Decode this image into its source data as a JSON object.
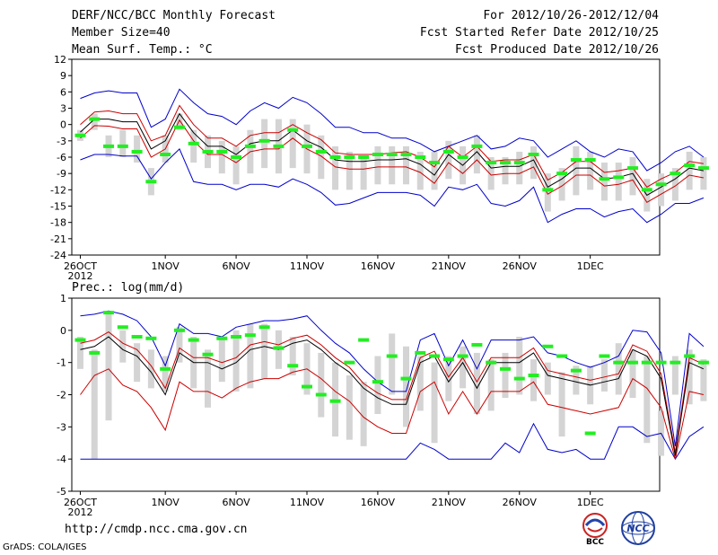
{
  "header": {
    "title": "DERF/NCC/BCC Monthly Forecast",
    "member_size": "Member Size=40",
    "variable": "Mean Surf. Temp.: °C",
    "period": "For 2012/10/26-2012/12/04",
    "started": "Fcst Started Refer Date 2012/10/25",
    "produced": "Fcst Produced Date 2012/10/26"
  },
  "footer": {
    "url": "http://cmdp.ncc.cma.gov.cn",
    "credit": "GrADS: COLA/IGES",
    "logo_left_label": "BCC",
    "logo_right_label": "NCC"
  },
  "colors": {
    "ensemble_mean": "#000000",
    "inner_band": "#cc0000",
    "outer_band": "#0000cc",
    "bar": "#d4d4d4",
    "marker": "#22ee22"
  },
  "chart_data": [
    {
      "type": "line",
      "title": "Mean Surf. Temp.: °C",
      "xlabel": "",
      "ylabel": "",
      "x_days": 40,
      "xticks": [
        {
          "day": 0,
          "label": "26OCT"
        },
        {
          "day": 6,
          "label": "1NOV"
        },
        {
          "day": 11,
          "label": "6NOV"
        },
        {
          "day": 16,
          "label": "11NOV"
        },
        {
          "day": 21,
          "label": "16NOV"
        },
        {
          "day": 26,
          "label": "21NOV"
        },
        {
          "day": 31,
          "label": "26NOV"
        },
        {
          "day": 36,
          "label": "1DEC"
        }
      ],
      "year_label": "2012",
      "ylim": [
        -24,
        12
      ],
      "yticks": [
        12,
        9,
        6,
        3,
        0,
        -3,
        -6,
        -9,
        -12,
        -15,
        -18,
        -21,
        -24
      ],
      "series": [
        {
          "name": "mean",
          "values": [
            -1.4,
            1.0,
            1.0,
            0.5,
            0.5,
            -4.5,
            -3,
            2,
            -1.5,
            -4,
            -4,
            -5.5,
            -3.5,
            -3,
            -3,
            -1,
            -3,
            -4.2,
            -6.5,
            -6.8,
            -6.8,
            -6.5,
            -6.5,
            -6.3,
            -7.3,
            -9.3,
            -5.5,
            -7.5,
            -5.0,
            -8.0,
            -7.7,
            -7.7,
            -6.5,
            -11.5,
            -10.0,
            -8.0,
            -8.0,
            -10.0,
            -9.7,
            -9.0,
            -13.0,
            -11.5,
            -10.0,
            -8.0,
            -8.5
          ]
        },
        {
          "name": "upper-red",
          "values": [
            0,
            2.3,
            2.5,
            2,
            2,
            -3,
            -2,
            3.5,
            0,
            -2.5,
            -2.5,
            -4,
            -2,
            -1.5,
            -1.5,
            0,
            -1.5,
            -2.8,
            -5.2,
            -5.5,
            -5.5,
            -5.5,
            -5.2,
            -5,
            -6,
            -7.8,
            -4,
            -6,
            -4,
            -6.8,
            -6.5,
            -6.5,
            -5.5,
            -10.2,
            -8.8,
            -6.8,
            -6.8,
            -8.8,
            -8.5,
            -8,
            -11.5,
            -10,
            -8.8,
            -6.8,
            -7.2
          ]
        },
        {
          "name": "lower-red",
          "values": [
            -2.5,
            -0.2,
            -0.3,
            -0.8,
            -0.8,
            -6,
            -4.5,
            0.8,
            -3,
            -5.5,
            -5.5,
            -7,
            -5,
            -4.5,
            -4.5,
            -2.5,
            -4.5,
            -5.8,
            -7.8,
            -8.2,
            -8.2,
            -7.8,
            -7.8,
            -7.8,
            -8.8,
            -10.8,
            -7,
            -9,
            -6.5,
            -9.3,
            -9,
            -9,
            -7.8,
            -12.8,
            -11.3,
            -9.3,
            -9.3,
            -11.3,
            -11,
            -10.2,
            -14.3,
            -12.8,
            -11.3,
            -9.3,
            -9.8
          ]
        },
        {
          "name": "upper-blue",
          "values": [
            4.8,
            5.8,
            6.2,
            5.8,
            5.8,
            -0.5,
            1,
            6.5,
            4,
            2,
            1.5,
            0,
            2.5,
            4,
            3,
            5,
            4,
            2,
            -0.5,
            -0.5,
            -1.5,
            -1.5,
            -2.5,
            -2.5,
            -3.5,
            -5,
            -4,
            -3,
            -2,
            -4.5,
            -4,
            -2.5,
            -3,
            -6,
            -4.5,
            -3,
            -5,
            -6,
            -4.5,
            -5,
            -8.5,
            -7,
            -5,
            -4,
            -6
          ]
        },
        {
          "name": "lower-blue",
          "values": [
            -6.5,
            -5.5,
            -5.5,
            -5.8,
            -5.8,
            -10,
            -7,
            -4.5,
            -10.5,
            -11,
            -11,
            -12,
            -11,
            -11,
            -11.5,
            -10,
            -11,
            -12.5,
            -14.8,
            -14.5,
            -13.5,
            -12.5,
            -12.5,
            -12.5,
            -13,
            -15,
            -11.5,
            -12,
            -11,
            -14.5,
            -15,
            -14,
            -11.5,
            -18,
            -16.5,
            -15.5,
            -15.5,
            -17,
            -16,
            -15.5,
            -18,
            -16.5,
            -14.5,
            -14.5,
            -13.5
          ]
        },
        {
          "name": "bars",
          "values": [
            [
              -3,
              -1
            ],
            [
              -1,
              2
            ],
            [
              -6,
              -2
            ],
            [
              -6,
              -1
            ],
            [
              -7,
              -2
            ],
            [
              -13,
              -8
            ],
            [
              -7,
              -2
            ],
            [
              -1,
              2
            ],
            [
              -7,
              -1
            ],
            [
              -8,
              -2
            ],
            [
              -9,
              -3
            ],
            [
              -11,
              -4
            ],
            [
              -9,
              -1
            ],
            [
              -8,
              1
            ],
            [
              -9,
              1
            ],
            [
              -8,
              1
            ],
            [
              -9,
              0
            ],
            [
              -10,
              -2
            ],
            [
              -12,
              -4
            ],
            [
              -12,
              -5
            ],
            [
              -12,
              -6
            ],
            [
              -11,
              -4
            ],
            [
              -11,
              -4
            ],
            [
              -11,
              -4
            ],
            [
              -12,
              -5
            ],
            [
              -12,
              -5
            ],
            [
              -10,
              -3
            ],
            [
              -11,
              -4
            ],
            [
              -9,
              -2
            ],
            [
              -12,
              -6
            ],
            [
              -11,
              -6
            ],
            [
              -11,
              -5
            ],
            [
              -10,
              -4
            ],
            [
              -16,
              -9
            ],
            [
              -14,
              -8
            ],
            [
              -13,
              -4
            ],
            [
              -12,
              -5
            ],
            [
              -14,
              -7
            ],
            [
              -14,
              -7
            ],
            [
              -13,
              -6
            ],
            [
              -16,
              -10
            ],
            [
              -15,
              -9
            ],
            [
              -14,
              -8
            ],
            [
              -12,
              -5
            ],
            [
              -12,
              -6
            ]
          ]
        },
        {
          "name": "markers",
          "values": [
            -2,
            1,
            -4,
            -4,
            -5,
            -10.5,
            -5.5,
            -0.5,
            -3.5,
            -5,
            -5,
            -6,
            -4,
            -3,
            -4,
            -1,
            -4,
            -5,
            -6,
            -6,
            -6,
            -5.5,
            -5.5,
            -5.5,
            -6,
            -7,
            -5,
            -6,
            -4,
            -7,
            -7,
            -7,
            -5.5,
            -12,
            -9,
            -6.5,
            -6.5,
            -10,
            -9.7,
            -8,
            -12,
            -11,
            -9,
            -7.5,
            -8
          ]
        }
      ]
    },
    {
      "type": "line",
      "title": "Prec.: log(mm/d)",
      "xlabel": "",
      "ylabel": "",
      "x_days": 40,
      "xticks": [
        {
          "day": 0,
          "label": "26OCT"
        },
        {
          "day": 6,
          "label": "1NOV"
        },
        {
          "day": 11,
          "label": "6NOV"
        },
        {
          "day": 16,
          "label": "11NOV"
        },
        {
          "day": 21,
          "label": "16NOV"
        },
        {
          "day": 26,
          "label": "21NOV"
        },
        {
          "day": 31,
          "label": "26NOV"
        },
        {
          "day": 36,
          "label": "1DEC"
        }
      ],
      "year_label": "2012",
      "ylim": [
        -5,
        1
      ],
      "yticks": [
        1,
        0,
        -1,
        -2,
        -3,
        -4,
        -5
      ],
      "series": [
        {
          "name": "mean",
          "values": [
            -0.6,
            -0.5,
            -0.2,
            -0.6,
            -0.8,
            -1.3,
            -2.0,
            -0.7,
            -1.0,
            -1.0,
            -1.2,
            -1.0,
            -0.6,
            -0.5,
            -0.6,
            -0.4,
            -0.3,
            -0.6,
            -1.0,
            -1.3,
            -1.8,
            -2.1,
            -2.3,
            -2.3,
            -1.0,
            -0.8,
            -1.6,
            -1.0,
            -1.8,
            -1.0,
            -1.0,
            -1.0,
            -0.7,
            -1.4,
            -1.5,
            -1.6,
            -1.7,
            -1.6,
            -1.5,
            -0.6,
            -0.8,
            -1.5,
            -3.9,
            -1.0,
            -1.2
          ]
        },
        {
          "name": "upper-red",
          "values": [
            -0.4,
            -0.3,
            -0.05,
            -0.4,
            -0.6,
            -1.1,
            -1.8,
            -0.55,
            -0.85,
            -0.85,
            -1.0,
            -0.85,
            -0.45,
            -0.35,
            -0.45,
            -0.25,
            -0.15,
            -0.45,
            -0.85,
            -1.15,
            -1.65,
            -1.95,
            -2.15,
            -2.15,
            -0.85,
            -0.65,
            -1.45,
            -0.85,
            -1.6,
            -0.85,
            -0.85,
            -0.85,
            -0.55,
            -1.25,
            -1.35,
            -1.45,
            -1.55,
            -1.45,
            -1.35,
            -0.45,
            -0.65,
            -1.35,
            -3.8,
            -0.85,
            -1.05
          ]
        },
        {
          "name": "lower-red",
          "values": [
            -2.0,
            -1.4,
            -1.2,
            -1.7,
            -1.9,
            -2.4,
            -3.1,
            -1.6,
            -1.9,
            -1.9,
            -2.1,
            -1.8,
            -1.6,
            -1.5,
            -1.5,
            -1.3,
            -1.2,
            -1.5,
            -1.9,
            -2.2,
            -2.7,
            -3.0,
            -3.2,
            -3.2,
            -1.9,
            -1.6,
            -2.6,
            -1.9,
            -2.6,
            -1.9,
            -1.9,
            -1.9,
            -1.6,
            -2.3,
            -2.4,
            -2.5,
            -2.6,
            -2.5,
            -2.4,
            -1.5,
            -1.8,
            -2.4,
            -4.0,
            -1.9,
            -2.0
          ]
        },
        {
          "name": "upper-blue",
          "values": [
            0.45,
            0.5,
            0.6,
            0.5,
            0.3,
            -0.2,
            -1.1,
            0.2,
            -0.1,
            -0.1,
            -0.2,
            0.1,
            0.2,
            0.3,
            0.3,
            0.35,
            0.45,
            0.0,
            -0.4,
            -0.7,
            -1.2,
            -1.6,
            -1.9,
            -1.9,
            -0.3,
            -0.1,
            -1.1,
            -0.3,
            -1.2,
            -0.3,
            -0.3,
            -0.3,
            -0.2,
            -0.7,
            -0.8,
            -1.0,
            -1.15,
            -1.0,
            -0.8,
            0.0,
            -0.05,
            -0.7,
            -3.6,
            -0.1,
            -0.5
          ]
        },
        {
          "name": "lower-blue",
          "values": [
            -4.0,
            -4.0,
            -4.0,
            -4.0,
            -4.0,
            -4.0,
            -4.0,
            -4.0,
            -4.0,
            -4.0,
            -4.0,
            -4.0,
            -4.0,
            -4.0,
            -4.0,
            -4.0,
            -4.0,
            -4.0,
            -4.0,
            -4.0,
            -4.0,
            -4.0,
            -4.0,
            -4.0,
            -3.5,
            -3.7,
            -4.0,
            -4.0,
            -4.0,
            -4.0,
            -3.5,
            -3.8,
            -2.9,
            -3.7,
            -3.8,
            -3.7,
            -4.0,
            -4.0,
            -3.0,
            -3.0,
            -3.3,
            -3.2,
            -4.0,
            -3.3,
            -3.0
          ]
        },
        {
          "name": "bars",
          "values": [
            [
              -1.2,
              -0.2
            ],
            [
              -4.0,
              -0.6
            ],
            [
              -2.8,
              0.5
            ],
            [
              -1.0,
              0.0
            ],
            [
              -1.6,
              -0.4
            ],
            [
              -1.8,
              -0.6
            ],
            [
              -1.9,
              -0.8
            ],
            [
              -1.0,
              0.1
            ],
            [
              -1.8,
              -0.2
            ],
            [
              -2.4,
              -0.6
            ],
            [
              -1.6,
              -0.2
            ],
            [
              -1.9,
              0.0
            ],
            [
              -1.8,
              0.2
            ],
            [
              -1.5,
              0.2
            ],
            [
              -1.2,
              0.0
            ],
            [
              -1.4,
              -0.2
            ],
            [
              -2.0,
              -0.4
            ],
            [
              -2.7,
              -0.7
            ],
            [
              -3.3,
              -1.0
            ],
            [
              -3.4,
              -1.4
            ],
            [
              -3.6,
              -1.6
            ],
            [
              -2.6,
              -0.8
            ],
            [
              -2.0,
              -0.1
            ],
            [
              -3.0,
              -0.5
            ],
            [
              -2.5,
              -0.8
            ],
            [
              -3.5,
              -1.0
            ],
            [
              -2.2,
              -0.8
            ],
            [
              -1.8,
              -0.5
            ],
            [
              -2.6,
              -0.7
            ],
            [
              -2.5,
              -0.9
            ],
            [
              -2.1,
              -0.7
            ],
            [
              -2.0,
              -0.2
            ],
            [
              -2.2,
              -0.9
            ],
            [
              -2.0,
              -1.0
            ],
            [
              -3.3,
              -1.3
            ],
            [
              -2.0,
              -1.1
            ],
            [
              -2.3,
              -1.1
            ],
            [
              -1.9,
              -0.9
            ],
            [
              -2.0,
              -0.4
            ],
            [
              -2.1,
              -0.6
            ],
            [
              -3.5,
              -0.8
            ],
            [
              -3.9,
              -2.5
            ],
            [
              -2.0,
              -0.8
            ],
            [
              -2.3,
              -0.6
            ],
            [
              -2.2,
              -0.9
            ]
          ]
        },
        {
          "name": "markers",
          "values": [
            -0.3,
            -0.7,
            0.55,
            0.1,
            -0.2,
            -0.25,
            -1.2,
            0.0,
            -0.3,
            -0.75,
            -0.25,
            -0.2,
            -0.15,
            0.1,
            -0.55,
            -1.1,
            -1.75,
            -2.0,
            -2.2,
            -1.0,
            -0.3,
            -1.6,
            -0.8,
            -1.5,
            -0.7,
            -0.8,
            -0.9,
            -0.8,
            -0.45,
            -1.0,
            -1.2,
            -1.5,
            -1.4,
            -0.5,
            -0.8,
            -1.25,
            -3.2,
            -0.8,
            -1.0,
            -1.0,
            -1.0,
            -1.0,
            -1.0,
            -0.8,
            -1.0
          ]
        }
      ]
    }
  ]
}
